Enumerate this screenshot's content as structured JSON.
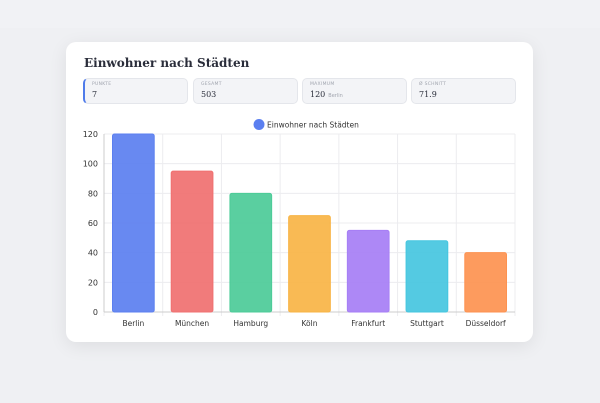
{
  "title": "Einwohner nach Städten",
  "stats": [
    {
      "label": "PUNKTE",
      "value": "7"
    },
    {
      "label": "GESAMT",
      "value": "503"
    },
    {
      "label": "MAXIMUM",
      "value": "120",
      "sub": "Berlin"
    },
    {
      "label": "Ø SCHNITT",
      "value": "71.9"
    }
  ],
  "chart_data": {
    "type": "bar",
    "title": "",
    "legend": [
      "Einwohner nach Städten"
    ],
    "legend_position": "top-center",
    "categories": [
      "Berlin",
      "München",
      "Hamburg",
      "Köln",
      "Frankfurt",
      "Stuttgart",
      "Düsseldorf"
    ],
    "values": [
      120,
      95,
      80,
      65,
      55,
      48,
      40
    ],
    "colors": [
      "#5b7ff0",
      "#f07070",
      "#4ccb98",
      "#f8b445",
      "#a67ef5",
      "#45c6df",
      "#fd9250"
    ],
    "legend_color": "#5b7ff0",
    "ylim": [
      0,
      120
    ],
    "yticks": [
      0,
      20,
      40,
      60,
      80,
      100,
      120
    ],
    "grid": true,
    "xlabel": "",
    "ylabel": ""
  }
}
